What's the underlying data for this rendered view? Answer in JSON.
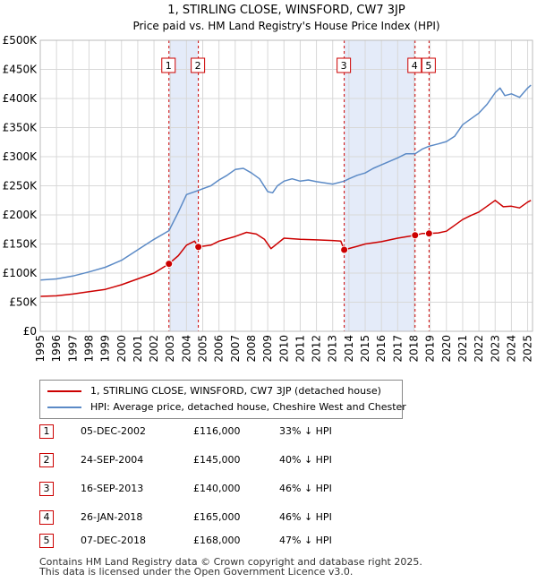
{
  "chart_data": {
    "type": "line",
    "title": "1, STIRLING CLOSE, WINSFORD, CW7 3JP",
    "subtitle": "Price paid vs. HM Land Registry's House Price Index (HPI)",
    "xlabel": "",
    "ylabel": "",
    "xlim": [
      1995,
      2025.3
    ],
    "ylim": [
      0,
      500000
    ],
    "grid": true,
    "x_ticks": [
      "1995",
      "1996",
      "1997",
      "1998",
      "1999",
      "2000",
      "2001",
      "2002",
      "2003",
      "2004",
      "2005",
      "2006",
      "2007",
      "2008",
      "2009",
      "2010",
      "2011",
      "2012",
      "2013",
      "2014",
      "2015",
      "2016",
      "2017",
      "2018",
      "2019",
      "2020",
      "2021",
      "2022",
      "2023",
      "2024",
      "2025"
    ],
    "y_ticks": [
      {
        "value": 0,
        "label": "£0"
      },
      {
        "value": 50000,
        "label": "£50K"
      },
      {
        "value": 100000,
        "label": "£100K"
      },
      {
        "value": 150000,
        "label": "£150K"
      },
      {
        "value": 200000,
        "label": "£200K"
      },
      {
        "value": 250000,
        "label": "£250K"
      },
      {
        "value": 300000,
        "label": "£300K"
      },
      {
        "value": 350000,
        "label": "£350K"
      },
      {
        "value": 400000,
        "label": "£400K"
      },
      {
        "value": 450000,
        "label": "£450K"
      },
      {
        "value": 500000,
        "label": "£500K"
      }
    ],
    "series": [
      {
        "name": "1, STIRLING CLOSE, WINSFORD, CW7 3JP (detached house)",
        "color": "#cc0000",
        "x": [
          1995.0,
          1996.0,
          1997.0,
          1998.0,
          1999.0,
          2000.0,
          2001.0,
          2002.0,
          2002.92,
          2003.5,
          2004.0,
          2004.5,
          2004.73,
          2005.5,
          2006.0,
          2007.0,
          2007.7,
          2008.3,
          2008.8,
          2009.2,
          2010.0,
          2011.0,
          2012.0,
          2013.0,
          2013.5,
          2013.71,
          2014.5,
          2015.0,
          2016.0,
          2017.0,
          2018.07,
          2018.5,
          2018.93,
          2019.5,
          2020.0,
          2020.5,
          2021.0,
          2021.5,
          2022.0,
          2022.5,
          2023.0,
          2023.5,
          2024.0,
          2024.5,
          2025.0,
          2025.2
        ],
        "values": [
          60000,
          61000,
          64000,
          68000,
          72000,
          80000,
          90000,
          100000,
          116000,
          130000,
          148000,
          155000,
          145000,
          148000,
          155000,
          163000,
          170000,
          167000,
          158000,
          142000,
          160000,
          158000,
          157000,
          156000,
          155000,
          140000,
          146000,
          150000,
          154000,
          160000,
          165000,
          168000,
          168000,
          169000,
          172000,
          182000,
          192000,
          199000,
          205000,
          215000,
          225000,
          214000,
          215000,
          212000,
          222000,
          225000
        ]
      },
      {
        "name": "HPI: Average price, detached house, Cheshire West and Chester",
        "color": "#5b8ac6",
        "x": [
          1995.0,
          1996.0,
          1997.0,
          1998.0,
          1999.0,
          2000.0,
          2001.0,
          2002.0,
          2002.92,
          2003.5,
          2004.0,
          2004.73,
          2005.0,
          2005.5,
          2006.0,
          2006.5,
          2007.0,
          2007.5,
          2008.0,
          2008.5,
          2009.0,
          2009.3,
          2009.6,
          2010.0,
          2010.5,
          2011.0,
          2011.5,
          2012.0,
          2012.5,
          2013.0,
          2013.71,
          2014.0,
          2014.5,
          2015.0,
          2015.5,
          2016.0,
          2016.5,
          2017.0,
          2017.5,
          2018.07,
          2018.5,
          2018.93,
          2019.5,
          2020.0,
          2020.5,
          2021.0,
          2021.5,
          2022.0,
          2022.5,
          2023.0,
          2023.3,
          2023.6,
          2024.0,
          2024.5,
          2025.0,
          2025.2
        ],
        "values": [
          88000,
          90000,
          95000,
          102000,
          110000,
          122000,
          140000,
          158000,
          173000,
          205000,
          235000,
          242000,
          245000,
          250000,
          260000,
          268000,
          278000,
          280000,
          272000,
          262000,
          240000,
          238000,
          250000,
          258000,
          262000,
          258000,
          260000,
          257000,
          255000,
          253000,
          258000,
          262000,
          268000,
          272000,
          280000,
          286000,
          292000,
          298000,
          305000,
          305000,
          313000,
          318000,
          322000,
          326000,
          335000,
          355000,
          365000,
          375000,
          390000,
          410000,
          418000,
          405000,
          408000,
          402000,
          418000,
          423000
        ]
      }
    ],
    "annotations": [
      {
        "label": "1",
        "x": 2002.92
      },
      {
        "label": "2",
        "x": 2004.73
      },
      {
        "label": "3",
        "x": 2013.71
      },
      {
        "label": "4",
        "x": 2018.07
      },
      {
        "label": "5",
        "x": 2018.93
      }
    ],
    "points": [
      {
        "x": 2002.92,
        "y": 116000
      },
      {
        "x": 2004.73,
        "y": 145000
      },
      {
        "x": 2013.71,
        "y": 140000
      },
      {
        "x": 2018.07,
        "y": 165000
      },
      {
        "x": 2018.93,
        "y": 168000
      }
    ],
    "shaded_ranges": [
      [
        2002.92,
        2004.73
      ],
      [
        2013.71,
        2018.07
      ]
    ]
  },
  "legend": {
    "property_label": "1, STIRLING CLOSE, WINSFORD, CW7 3JP (detached house)",
    "hpi_label": "HPI: Average price, detached house, Cheshire West and Chester"
  },
  "transactions": [
    {
      "num": "1",
      "date": "05-DEC-2002",
      "price": "£116,000",
      "hpi": "33% ↓ HPI"
    },
    {
      "num": "2",
      "date": "24-SEP-2004",
      "price": "£145,000",
      "hpi": "40% ↓ HPI"
    },
    {
      "num": "3",
      "date": "16-SEP-2013",
      "price": "£140,000",
      "hpi": "46% ↓ HPI"
    },
    {
      "num": "4",
      "date": "26-JAN-2018",
      "price": "£165,000",
      "hpi": "46% ↓ HPI"
    },
    {
      "num": "5",
      "date": "07-DEC-2018",
      "price": "£168,000",
      "hpi": "47% ↓ HPI"
    }
  ],
  "footer": {
    "line1": "Contains HM Land Registry data © Crown copyright and database right 2025.",
    "line2": "This data is licensed under the Open Government Licence v3.0."
  },
  "colors": {
    "property": "#cc0000",
    "hpi": "#5b8ac6",
    "shade": "#dde6f7",
    "marker_border": "#cc0000"
  }
}
